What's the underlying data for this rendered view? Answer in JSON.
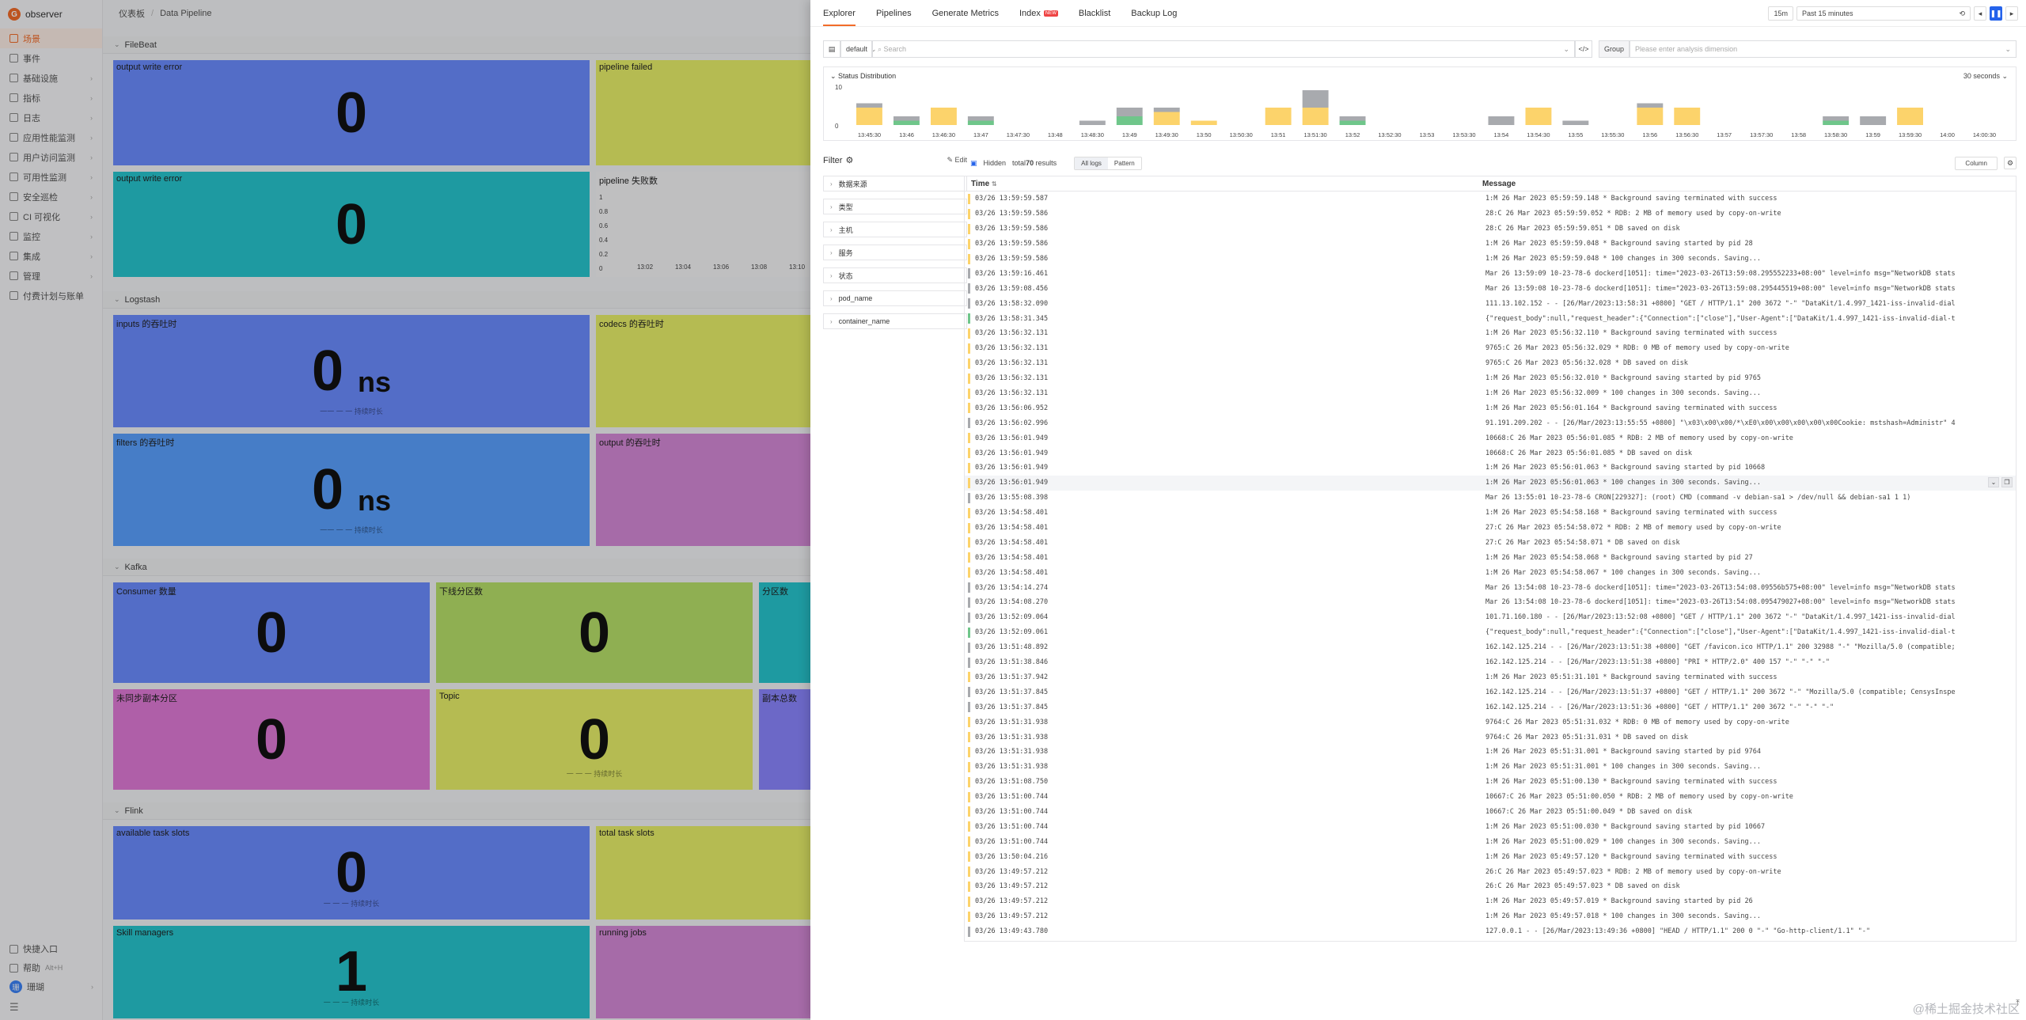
{
  "app": {
    "logo_text": "observer"
  },
  "sidebar": {
    "items": [
      {
        "label": "场景",
        "active": true
      },
      {
        "label": "事件"
      },
      {
        "label": "基础设施"
      },
      {
        "label": "指标"
      },
      {
        "label": "日志"
      },
      {
        "label": "应用性能监测"
      },
      {
        "label": "用户访问监测"
      },
      {
        "label": "可用性监测"
      },
      {
        "label": "安全巡检"
      },
      {
        "label": "CI 可视化"
      },
      {
        "label": "监控"
      },
      {
        "label": "集成"
      },
      {
        "label": "管理"
      },
      {
        "label": "付费计划与账单"
      }
    ],
    "bottom": {
      "quick_entry": "快捷入口",
      "help": "帮助",
      "help_shortcut": "Alt+H",
      "user_name": "珊瑚",
      "user_initial": "珊"
    }
  },
  "breadcrumb": {
    "root": "仪表板",
    "current": "Data Pipeline"
  },
  "dashboard": {
    "sections": [
      {
        "title": "FileBeat",
        "panels": [
          {
            "title": "output write error",
            "value": "0",
            "color": "#6b8cff"
          },
          {
            "title": "pipeline failed",
            "value": "",
            "color": "#e8f06a"
          },
          {
            "title": "output write error",
            "value": "0",
            "color": "#27c6cf"
          },
          {
            "title": "pipeline 失败数",
            "value": "",
            "color": "#f5f5f7",
            "chart": {
              "y_ticks": [
                "1",
                "0.8",
                "0.6",
                "0.4",
                "0.2",
                "0"
              ],
              "x_ticks": [
                "13:02",
                "13:04",
                "13:06",
                "13:08",
                "13:10"
              ]
            }
          }
        ]
      },
      {
        "title": "Logstash",
        "panels": [
          {
            "title": "inputs 的吞吐时",
            "value": "0",
            "unit": "ns",
            "color": "#6b8cff",
            "sub": "一一 一 一 持续时长"
          },
          {
            "title": "codecs 的吞吐时",
            "value": "0",
            "color": "#e8f06a"
          },
          {
            "title": "filters 的吞吐时",
            "value": "0",
            "unit": "ns",
            "color": "#5aa0ff",
            "sub": "一一 一 一 持续时长"
          },
          {
            "title": "output 的吞吐时",
            "value": "0",
            "color": "#d58ad8"
          }
        ]
      },
      {
        "title": "Kafka",
        "panels": [
          {
            "title": "Consumer 数量",
            "value": "0",
            "color": "#6b8cff"
          },
          {
            "title": "下线分区数",
            "value": "0",
            "color": "#b8e06a"
          },
          {
            "title": "分区数",
            "value": "",
            "color": "#27c6cf"
          },
          {
            "title": "未同步副本分区",
            "value": "0",
            "color": "#e07ad8"
          },
          {
            "title": "Topic",
            "value": "0",
            "color": "#e8f06a",
            "sub": "一 一 一 持续时长"
          },
          {
            "title": "副本总数",
            "value": "",
            "color": "#8b86ff"
          }
        ]
      },
      {
        "title": "Flink",
        "panels": [
          {
            "title": "available task slots",
            "value": "0",
            "color": "#6b8cff",
            "sub": "一 一 一 持续时长"
          },
          {
            "title": "total task slots",
            "value": "",
            "color": "#e8f06a"
          },
          {
            "title": "Skill managers",
            "value": "1",
            "color": "#27c6cf",
            "sub": "一 一 一 持续时长"
          },
          {
            "title": "running jobs",
            "value": "",
            "color": "#d58ad8"
          }
        ]
      }
    ]
  },
  "drawer": {
    "tabs": [
      {
        "label": "Explorer",
        "active": true
      },
      {
        "label": "Pipelines"
      },
      {
        "label": "Generate Metrics"
      },
      {
        "label": "Index",
        "badge": "NEW"
      },
      {
        "label": "Blacklist"
      },
      {
        "label": "Backup Log"
      }
    ],
    "time": {
      "quick": "15m",
      "range": "Past 15 minutes",
      "prev": "◂",
      "pause": "❚❚",
      "next": "▸"
    },
    "query": {
      "index": "default",
      "search_placeholder": "Search",
      "group_label": "Group",
      "dimension_placeholder": "Please enter analysis dimension"
    },
    "status": {
      "title": "Status Distribution",
      "interval": "30 seconds",
      "y_ticks": [
        "10",
        "0"
      ],
      "colors": {
        "warn": "#fcd36b",
        "info": "#a8aaae",
        "ok": "#6fc68a"
      },
      "buckets": [
        {
          "t": "13:45:30",
          "warn": 4,
          "info": 1,
          "ok": 0
        },
        {
          "t": "13:46",
          "warn": 0,
          "info": 1,
          "ok": 1
        },
        {
          "t": "13:46:30",
          "warn": 4,
          "info": 0,
          "ok": 0
        },
        {
          "t": "13:47",
          "warn": 0,
          "info": 1,
          "ok": 1
        },
        {
          "t": "13:47:30",
          "warn": 0,
          "info": 0,
          "ok": 0
        },
        {
          "t": "13:48",
          "warn": 0,
          "info": 0,
          "ok": 0
        },
        {
          "t": "13:48:30",
          "warn": 0,
          "info": 1,
          "ok": 0
        },
        {
          "t": "13:49",
          "warn": 0,
          "info": 2,
          "ok": 2
        },
        {
          "t": "13:49:30",
          "warn": 3,
          "info": 1,
          "ok": 0
        },
        {
          "t": "13:50",
          "warn": 1,
          "info": 0,
          "ok": 0
        },
        {
          "t": "13:50:30",
          "warn": 0,
          "info": 0,
          "ok": 0
        },
        {
          "t": "13:51",
          "warn": 4,
          "info": 0,
          "ok": 0
        },
        {
          "t": "13:51:30",
          "warn": 4,
          "info": 4,
          "ok": 0
        },
        {
          "t": "13:52",
          "warn": 0,
          "info": 1,
          "ok": 1
        },
        {
          "t": "13:52:30",
          "warn": 0,
          "info": 0,
          "ok": 0
        },
        {
          "t": "13:53",
          "warn": 0,
          "info": 0,
          "ok": 0
        },
        {
          "t": "13:53:30",
          "warn": 0,
          "info": 0,
          "ok": 0
        },
        {
          "t": "13:54",
          "warn": 0,
          "info": 2,
          "ok": 0
        },
        {
          "t": "13:54:30",
          "warn": 4,
          "info": 0,
          "ok": 0
        },
        {
          "t": "13:55",
          "warn": 0,
          "info": 1,
          "ok": 0
        },
        {
          "t": "13:55:30",
          "warn": 0,
          "info": 0,
          "ok": 0
        },
        {
          "t": "13:56",
          "warn": 4,
          "info": 1,
          "ok": 0
        },
        {
          "t": "13:56:30",
          "warn": 4,
          "info": 0,
          "ok": 0
        },
        {
          "t": "13:57",
          "warn": 0,
          "info": 0,
          "ok": 0
        },
        {
          "t": "13:57:30",
          "warn": 0,
          "info": 0,
          "ok": 0
        },
        {
          "t": "13:58",
          "warn": 0,
          "info": 0,
          "ok": 0
        },
        {
          "t": "13:58:30",
          "warn": 0,
          "info": 1,
          "ok": 1
        },
        {
          "t": "13:59",
          "warn": 0,
          "info": 2,
          "ok": 0
        },
        {
          "t": "13:59:30",
          "warn": 4,
          "info": 0,
          "ok": 0
        },
        {
          "t": "14:00",
          "warn": 0,
          "info": 0,
          "ok": 0
        },
        {
          "t": "14:00:30",
          "warn": 0,
          "info": 0,
          "ok": 0
        }
      ]
    },
    "filter": {
      "title": "Filter",
      "edit": "Edit",
      "fields": [
        "数据来源",
        "类型",
        "主机",
        "服务",
        "状态",
        "pod_name",
        "container_name"
      ]
    },
    "toolbar": {
      "hidden_label": "Hidden",
      "total_prefix": "total",
      "total_count": "70",
      "total_suffix": "results",
      "all_logs": "All logs",
      "pattern": "Pattern",
      "column": "Column"
    },
    "table": {
      "col_time": "Time",
      "col_message": "Message",
      "rows": [
        {
          "t": "03/26 13:59:59.587",
          "m": "1:M 26 Mar 2023 05:59:59.148 * Background saving terminated with success",
          "l": "warn"
        },
        {
          "t": "03/26 13:59:59.586",
          "m": "28:C 26 Mar 2023 05:59:59.052 * RDB: 2 MB of memory used by copy-on-write",
          "l": "warn"
        },
        {
          "t": "03/26 13:59:59.586",
          "m": "28:C 26 Mar 2023 05:59:59.051 * DB saved on disk",
          "l": "warn"
        },
        {
          "t": "03/26 13:59:59.586",
          "m": "1:M 26 Mar 2023 05:59:59.048 * Background saving started by pid 28",
          "l": "warn"
        },
        {
          "t": "03/26 13:59:59.586",
          "m": "1:M 26 Mar 2023 05:59:59.048 * 100 changes in 300 seconds. Saving...",
          "l": "warn"
        },
        {
          "t": "03/26 13:59:16.461",
          "m": "Mar 26 13:59:09 10-23-78-6 dockerd[1051]: time=\"2023-03-26T13:59:08.295552233+08:00\" level=info msg=\"NetworkDB stats",
          "l": "info"
        },
        {
          "t": "03/26 13:59:08.456",
          "m": "Mar 26 13:59:08 10-23-78-6 dockerd[1051]: time=\"2023-03-26T13:59:08.295445519+08:00\" level=info msg=\"NetworkDB stats",
          "l": "info"
        },
        {
          "t": "03/26 13:58:32.090",
          "m": "111.13.102.152 - - [26/Mar/2023:13:58:31 +0800] \"GET / HTTP/1.1\" 200 3672 \"-\" \"DataKit/1.4.997_1421-iss-invalid-dial",
          "l": "info"
        },
        {
          "t": "03/26 13:58:31.345",
          "m": "{\"request_body\":null,\"request_header\":{\"Connection\":[\"close\"],\"User-Agent\":[\"DataKit/1.4.997_1421-iss-invalid-dial-t",
          "l": "ok"
        },
        {
          "t": "03/26 13:56:32.131",
          "m": "1:M 26 Mar 2023 05:56:32.110 * Background saving terminated with success",
          "l": "warn"
        },
        {
          "t": "03/26 13:56:32.131",
          "m": "9765:C 26 Mar 2023 05:56:32.029 * RDB: 0 MB of memory used by copy-on-write",
          "l": "warn"
        },
        {
          "t": "03/26 13:56:32.131",
          "m": "9765:C 26 Mar 2023 05:56:32.028 * DB saved on disk",
          "l": "warn"
        },
        {
          "t": "03/26 13:56:32.131",
          "m": "1:M 26 Mar 2023 05:56:32.010 * Background saving started by pid 9765",
          "l": "warn"
        },
        {
          "t": "03/26 13:56:32.131",
          "m": "1:M 26 Mar 2023 05:56:32.009 * 100 changes in 300 seconds. Saving...",
          "l": "warn"
        },
        {
          "t": "03/26 13:56:06.952",
          "m": "1:M 26 Mar 2023 05:56:01.164 * Background saving terminated with success",
          "l": "warn"
        },
        {
          "t": "03/26 13:56:02.996",
          "m": "91.191.209.202 - - [26/Mar/2023:13:55:55 +0800] \"\\x03\\x00\\x00/*\\xE0\\x00\\x00\\x00\\x00\\x00Cookie: mstshash=Administr\" 4",
          "l": "info"
        },
        {
          "t": "03/26 13:56:01.949",
          "m": "10668:C 26 Mar 2023 05:56:01.085 * RDB: 2 MB of memory used by copy-on-write",
          "l": "warn"
        },
        {
          "t": "03/26 13:56:01.949",
          "m": "10668:C 26 Mar 2023 05:56:01.085 * DB saved on disk",
          "l": "warn"
        },
        {
          "t": "03/26 13:56:01.949",
          "m": "1:M 26 Mar 2023 05:56:01.063 * Background saving started by pid 10668",
          "l": "warn"
        },
        {
          "t": "03/26 13:56:01.949",
          "m": "1:M 26 Mar 2023 05:56:01.063 * 100 changes in 300 seconds. Saving...",
          "l": "warn",
          "hl": true
        },
        {
          "t": "03/26 13:55:08.398",
          "m": "Mar 26 13:55:01 10-23-78-6 CRON[229327]: (root) CMD (command -v debian-sa1 > /dev/null && debian-sa1 1 1)",
          "l": "info"
        },
        {
          "t": "03/26 13:54:58.401",
          "m": "1:M 26 Mar 2023 05:54:58.168 * Background saving terminated with success",
          "l": "warn"
        },
        {
          "t": "03/26 13:54:58.401",
          "m": "27:C 26 Mar 2023 05:54:58.072 * RDB: 2 MB of memory used by copy-on-write",
          "l": "warn"
        },
        {
          "t": "03/26 13:54:58.401",
          "m": "27:C 26 Mar 2023 05:54:58.071 * DB saved on disk",
          "l": "warn"
        },
        {
          "t": "03/26 13:54:58.401",
          "m": "1:M 26 Mar 2023 05:54:58.068 * Background saving started by pid 27",
          "l": "warn"
        },
        {
          "t": "03/26 13:54:58.401",
          "m": "1:M 26 Mar 2023 05:54:58.067 * 100 changes in 300 seconds. Saving...",
          "l": "warn"
        },
        {
          "t": "03/26 13:54:14.274",
          "m": "Mar 26 13:54:08 10-23-78-6 dockerd[1051]: time=\"2023-03-26T13:54:08.09556b575+08:00\" level=info msg=\"NetworkDB stats",
          "l": "info"
        },
        {
          "t": "03/26 13:54:08.270",
          "m": "Mar 26 13:54:08 10-23-78-6 dockerd[1051]: time=\"2023-03-26T13:54:08.095479027+08:00\" level=info msg=\"NetworkDB stats",
          "l": "info"
        },
        {
          "t": "03/26 13:52:09.064",
          "m": "101.71.160.180 - - [26/Mar/2023:13:52:08 +0800] \"GET / HTTP/1.1\" 200 3672 \"-\" \"DataKit/1.4.997_1421-iss-invalid-dial",
          "l": "info"
        },
        {
          "t": "03/26 13:52:09.061",
          "m": "{\"request_body\":null,\"request_header\":{\"Connection\":[\"close\"],\"User-Agent\":[\"DataKit/1.4.997_1421-iss-invalid-dial-t",
          "l": "ok"
        },
        {
          "t": "03/26 13:51:48.892",
          "m": "162.142.125.214 - - [26/Mar/2023:13:51:38 +0800] \"GET /favicon.ico HTTP/1.1\" 200 32988 \"-\" \"Mozilla/5.0 (compatible;",
          "l": "info"
        },
        {
          "t": "03/26 13:51:38.846",
          "m": "162.142.125.214 - - [26/Mar/2023:13:51:38 +0800] \"PRI * HTTP/2.0\" 400 157 \"-\" \"-\" \"-\"",
          "l": "info"
        },
        {
          "t": "03/26 13:51:37.942",
          "m": "1:M 26 Mar 2023 05:51:31.101 * Background saving terminated with success",
          "l": "warn"
        },
        {
          "t": "03/26 13:51:37.845",
          "m": "162.142.125.214 - - [26/Mar/2023:13:51:37 +0800] \"GET / HTTP/1.1\" 200 3672 \"-\" \"Mozilla/5.0 (compatible; CensysInspe",
          "l": "info"
        },
        {
          "t": "03/26 13:51:37.845",
          "m": "162.142.125.214 - - [26/Mar/2023:13:51:36 +0800] \"GET / HTTP/1.1\" 200 3672 \"-\" \"-\" \"-\"",
          "l": "info"
        },
        {
          "t": "03/26 13:51:31.938",
          "m": "9764:C 26 Mar 2023 05:51:31.032 * RDB: 0 MB of memory used by copy-on-write",
          "l": "warn"
        },
        {
          "t": "03/26 13:51:31.938",
          "m": "9764:C 26 Mar 2023 05:51:31.031 * DB saved on disk",
          "l": "warn"
        },
        {
          "t": "03/26 13:51:31.938",
          "m": "1:M 26 Mar 2023 05:51:31.001 * Background saving started by pid 9764",
          "l": "warn"
        },
        {
          "t": "03/26 13:51:31.938",
          "m": "1:M 26 Mar 2023 05:51:31.001 * 100 changes in 300 seconds. Saving...",
          "l": "warn"
        },
        {
          "t": "03/26 13:51:08.750",
          "m": "1:M 26 Mar 2023 05:51:00.130 * Background saving terminated with success",
          "l": "warn"
        },
        {
          "t": "03/26 13:51:00.744",
          "m": "10667:C 26 Mar 2023 05:51:00.050 * RDB: 2 MB of memory used by copy-on-write",
          "l": "warn"
        },
        {
          "t": "03/26 13:51:00.744",
          "m": "10667:C 26 Mar 2023 05:51:00.049 * DB saved on disk",
          "l": "warn"
        },
        {
          "t": "03/26 13:51:00.744",
          "m": "1:M 26 Mar 2023 05:51:00.030 * Background saving started by pid 10667",
          "l": "warn"
        },
        {
          "t": "03/26 13:51:00.744",
          "m": "1:M 26 Mar 2023 05:51:00.029 * 100 changes in 300 seconds. Saving...",
          "l": "warn"
        },
        {
          "t": "03/26 13:50:04.216",
          "m": "1:M 26 Mar 2023 05:49:57.120 * Background saving terminated with success",
          "l": "warn"
        },
        {
          "t": "03/26 13:49:57.212",
          "m": "26:C 26 Mar 2023 05:49:57.023 * RDB: 2 MB of memory used by copy-on-write",
          "l": "warn"
        },
        {
          "t": "03/26 13:49:57.212",
          "m": "26:C 26 Mar 2023 05:49:57.023 * DB saved on disk",
          "l": "warn"
        },
        {
          "t": "03/26 13:49:57.212",
          "m": "1:M 26 Mar 2023 05:49:57.019 * Background saving started by pid 26",
          "l": "warn"
        },
        {
          "t": "03/26 13:49:57.212",
          "m": "1:M 26 Mar 2023 05:49:57.018 * 100 changes in 300 seconds. Saving...",
          "l": "warn"
        },
        {
          "t": "03/26 13:49:43.780",
          "m": "127.0.0.1 - - [26/Mar/2023:13:49:36 +0800] \"HEAD / HTTP/1.1\" 200 0 \"-\" \"Go-http-client/1.1\" \"-\"",
          "l": "info"
        }
      ]
    },
    "watermark": "@稀土掘金技术社区"
  }
}
